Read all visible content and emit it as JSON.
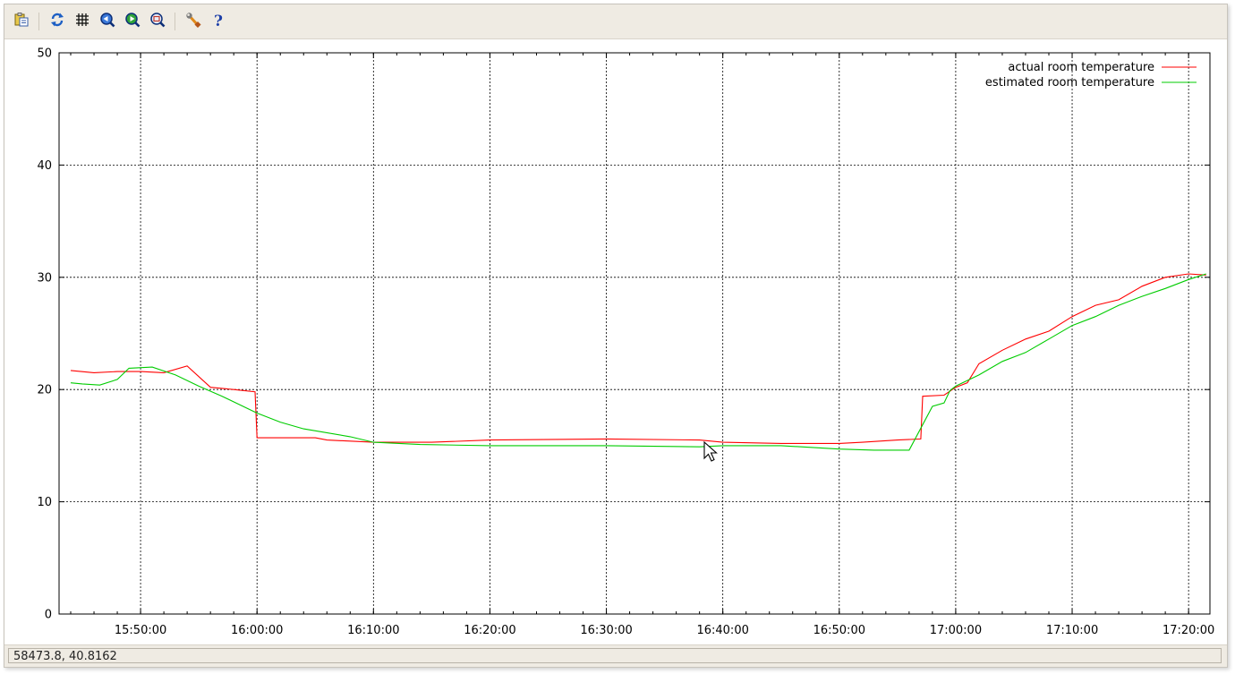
{
  "toolbar": {
    "buttons": [
      {
        "name": "copy-clipboard-icon"
      },
      {
        "name": "replot-icon"
      },
      {
        "name": "grid-icon"
      },
      {
        "name": "zoom-previous-icon"
      },
      {
        "name": "zoom-next-icon"
      },
      {
        "name": "unzoom-icon"
      },
      {
        "name": "settings-icon"
      },
      {
        "name": "help-icon"
      }
    ]
  },
  "status": {
    "coordinates": "58473.8,  40.8162"
  },
  "chart_data": {
    "type": "line",
    "title": "",
    "xlabel": "",
    "ylabel": "",
    "x_unit": "time of day (HH:MM:SS)",
    "xlim": [
      "15:43:00",
      "17:21:50"
    ],
    "ylim": [
      0,
      50
    ],
    "y_ticks": [
      0,
      10,
      20,
      30,
      40,
      50
    ],
    "x_ticks": [
      "15:50:00",
      "16:00:00",
      "16:10:00",
      "16:20:00",
      "16:30:00",
      "16:40:00",
      "16:50:00",
      "17:00:00",
      "17:10:00",
      "17:20:00"
    ],
    "grid": true,
    "legend_position": "top-right",
    "series": [
      {
        "name": "actual room temperature",
        "color": "#ff0000",
        "x": [
          "15:44:00",
          "15:46:00",
          "15:48:00",
          "15:50:00",
          "15:52:00",
          "15:54:00",
          "15:56:00",
          "15:58:00",
          "15:59:50",
          "16:00:00",
          "16:05:00",
          "16:06:00",
          "16:10:00",
          "16:15:00",
          "16:20:00",
          "16:30:00",
          "16:38:00",
          "16:40:00",
          "16:45:00",
          "16:50:00",
          "16:52:00",
          "16:55:00",
          "16:57:00",
          "16:57:10",
          "16:59:00",
          "17:00:00",
          "17:01:00",
          "17:02:00",
          "17:04:00",
          "17:06:00",
          "17:08:00",
          "17:10:00",
          "17:12:00",
          "17:14:00",
          "17:16:00",
          "17:18:00",
          "17:20:00",
          "17:21:30"
        ],
        "y": [
          21.7,
          21.5,
          21.6,
          21.6,
          21.5,
          22.1,
          20.2,
          20.0,
          19.8,
          15.7,
          15.7,
          15.5,
          15.3,
          15.3,
          15.5,
          15.6,
          15.5,
          15.3,
          15.2,
          15.2,
          15.3,
          15.5,
          15.6,
          19.4,
          19.5,
          20.2,
          20.6,
          22.3,
          23.5,
          24.5,
          25.2,
          26.5,
          27.5,
          28.0,
          29.2,
          30.0,
          30.3,
          30.2
        ]
      },
      {
        "name": "estimated room temperature",
        "color": "#00cc00",
        "x": [
          "15:44:00",
          "15:45:00",
          "15:46:30",
          "15:48:00",
          "15:49:00",
          "15:51:00",
          "15:53:00",
          "15:55:00",
          "15:57:00",
          "16:00:00",
          "16:02:00",
          "16:04:00",
          "16:08:00",
          "16:10:00",
          "16:14:00",
          "16:20:00",
          "16:30:00",
          "16:38:00",
          "16:40:00",
          "16:45:00",
          "16:50:00",
          "16:53:00",
          "16:55:00",
          "16:56:00",
          "16:58:00",
          "16:59:00",
          "16:59:30",
          "17:00:00",
          "17:02:00",
          "17:04:00",
          "17:06:00",
          "17:08:00",
          "17:10:00",
          "17:12:00",
          "17:14:00",
          "17:16:00",
          "17:18:00",
          "17:20:00",
          "17:21:30"
        ],
        "y": [
          20.6,
          20.5,
          20.4,
          20.9,
          21.9,
          22.0,
          21.3,
          20.3,
          19.4,
          17.9,
          17.1,
          16.5,
          15.8,
          15.3,
          15.1,
          15.0,
          15.0,
          14.9,
          15.0,
          15.0,
          14.7,
          14.6,
          14.6,
          14.6,
          18.5,
          18.8,
          19.9,
          20.3,
          21.3,
          22.5,
          23.3,
          24.5,
          25.7,
          26.5,
          27.5,
          28.3,
          29.0,
          29.8,
          30.3
        ]
      }
    ]
  }
}
